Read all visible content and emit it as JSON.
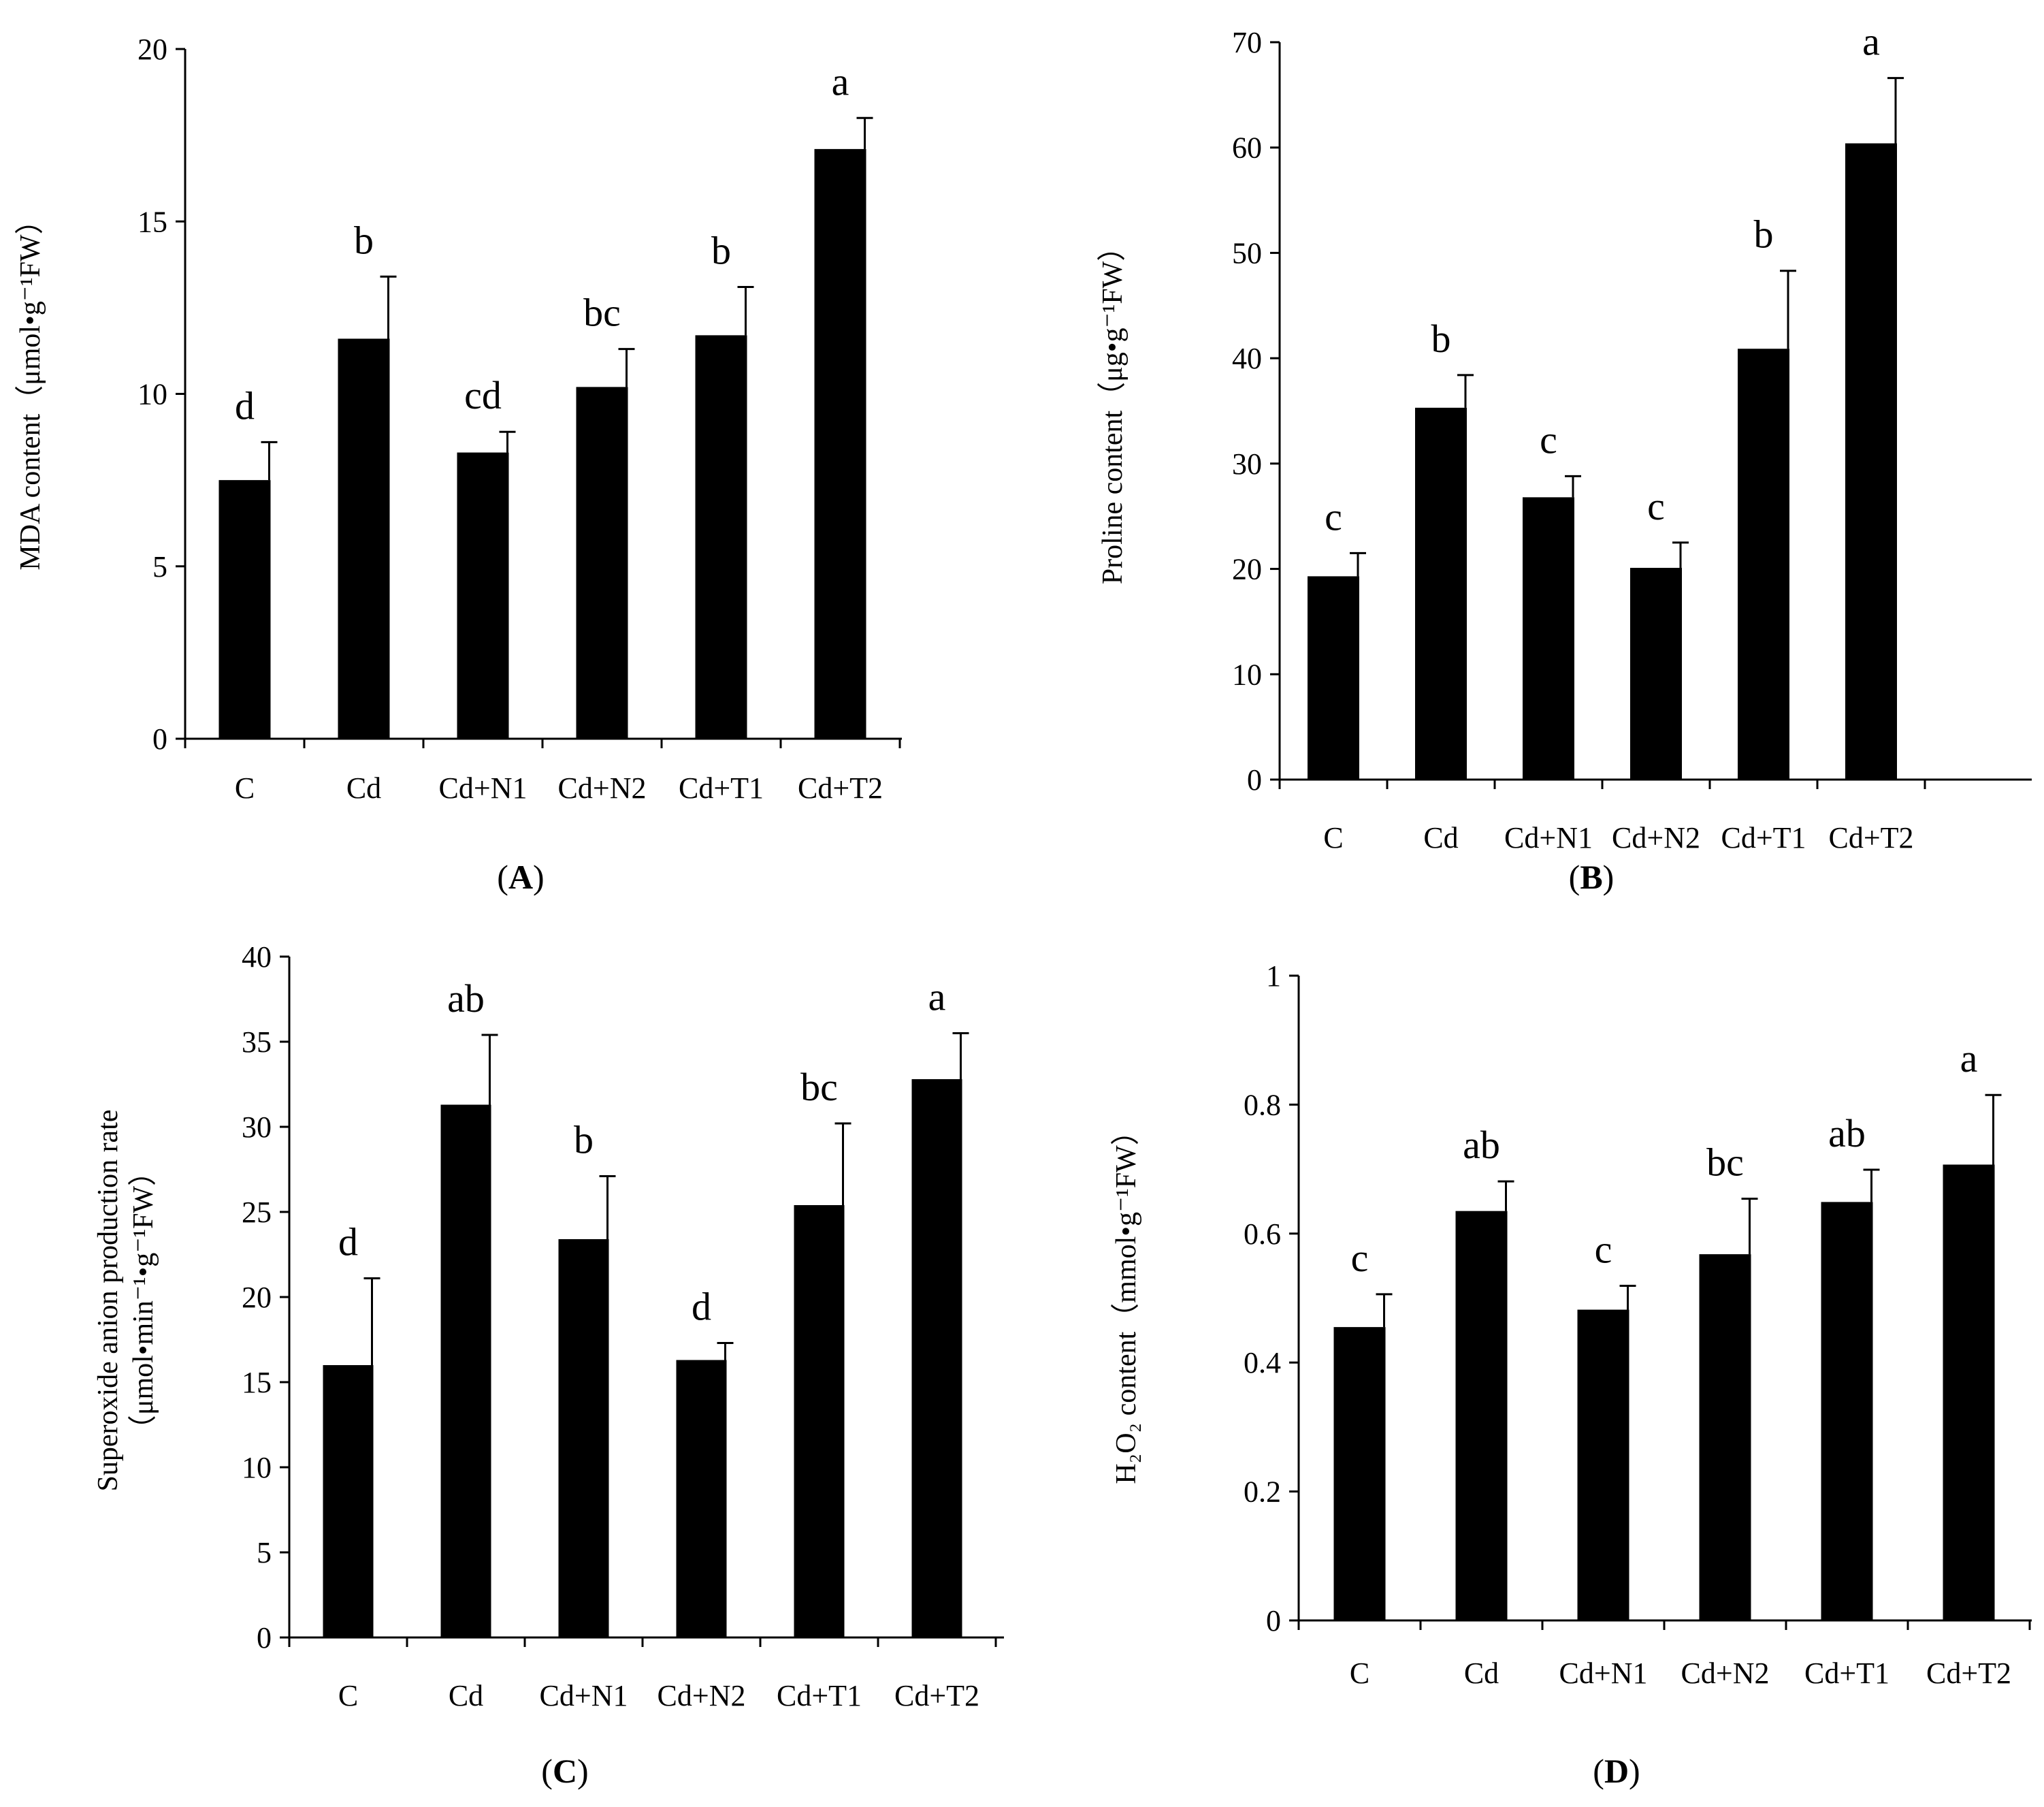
{
  "chart_data": [
    {
      "id": "A",
      "type": "bar",
      "panel_label": "A",
      "categories": [
        "C",
        "Cd",
        "Cd+N1",
        "Cd+N2",
        "Cd+T1",
        "Cd+T2"
      ],
      "values": [
        7.5,
        11.6,
        8.3,
        10.2,
        11.7,
        17.1
      ],
      "errors": [
        1.1,
        1.8,
        0.6,
        1.1,
        1.4,
        0.9
      ],
      "significance": [
        "d",
        "b",
        "cd",
        "bc",
        "b",
        "a"
      ],
      "ylabel": "MDA content（μmol•g⁻¹FW）",
      "ylim": [
        0,
        20
      ],
      "yticks": [
        0,
        5,
        10,
        15,
        20
      ],
      "ytick_labels": [
        "0",
        "5",
        "10",
        "15",
        "20"
      ],
      "bar_color": "#000000"
    },
    {
      "id": "B",
      "type": "bar",
      "panel_label": "B",
      "categories": [
        "C",
        "Cd",
        "Cd+N1",
        "Cd+N2",
        "Cd+T1",
        "Cd+T2"
      ],
      "values": [
        19.3,
        35.3,
        26.8,
        20.1,
        40.9,
        60.4
      ],
      "errors": [
        2.2,
        3.1,
        2.0,
        2.4,
        7.4,
        6.2
      ],
      "significance": [
        "c",
        "b",
        "c",
        "c",
        "b",
        "a"
      ],
      "ylabel": "Proline content（μg•g⁻¹FW）",
      "ylim": [
        0,
        70
      ],
      "yticks": [
        0,
        10,
        20,
        30,
        40,
        50,
        60,
        70
      ],
      "ytick_labels": [
        "0",
        "10",
        "20",
        "30",
        "40",
        "50",
        "60",
        "70"
      ],
      "bar_color": "#000000"
    },
    {
      "id": "C",
      "type": "bar",
      "panel_label": "C",
      "categories": [
        "C",
        "Cd",
        "Cd+N1",
        "Cd+N2",
        "Cd+T1",
        "Cd+T2"
      ],
      "values": [
        16.0,
        31.3,
        23.4,
        16.3,
        25.4,
        32.8
      ],
      "errors": [
        5.1,
        4.1,
        3.7,
        1.0,
        4.8,
        2.7
      ],
      "significance": [
        "d",
        "ab",
        "b",
        "d",
        "bc",
        "a"
      ],
      "ylabel": "Superoxide anion production rate",
      "ylabel_line2": "（μmol•min⁻¹•g⁻¹FW）",
      "ylim": [
        0,
        40
      ],
      "yticks": [
        0,
        5,
        10,
        15,
        20,
        25,
        30,
        35,
        40
      ],
      "ytick_labels": [
        "0",
        "5",
        "10",
        "15",
        "20",
        "25",
        "30",
        "35",
        "40"
      ],
      "bar_color": "#000000"
    },
    {
      "id": "D",
      "type": "bar",
      "panel_label": "D",
      "categories": [
        "C",
        "Cd",
        "Cd+N1",
        "Cd+N2",
        "Cd+T1",
        "Cd+T2"
      ],
      "values": [
        0.455,
        0.635,
        0.482,
        0.568,
        0.649,
        0.707
      ],
      "errors": [
        0.051,
        0.046,
        0.037,
        0.086,
        0.05,
        0.108
      ],
      "significance": [
        "c",
        "ab",
        "c",
        "bc",
        "ab",
        "a"
      ],
      "ylabel": "H₂O₂ content（mmol•g⁻¹FW）",
      "ylim": [
        0,
        1
      ],
      "yticks": [
        0,
        0.2,
        0.4,
        0.6,
        0.8,
        1
      ],
      "ytick_labels": [
        "0",
        "0.2",
        "0.4",
        "0.6",
        "0.8",
        "1"
      ],
      "bar_color": "#000000"
    }
  ]
}
